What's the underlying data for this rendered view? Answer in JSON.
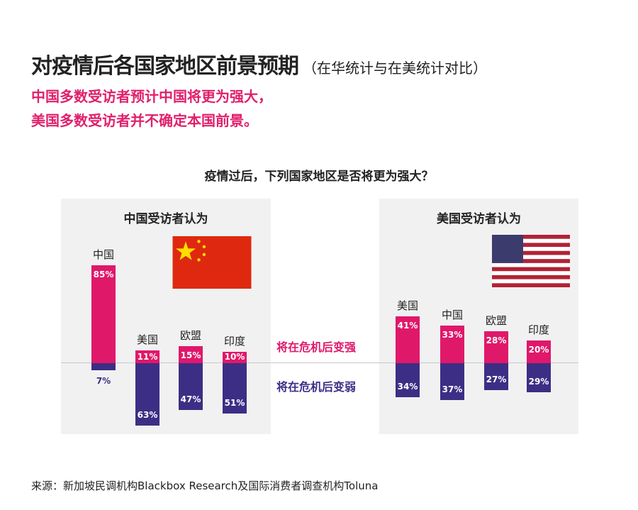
{
  "header": {
    "title": "对疫情后各国家地区前景预期",
    "title_note": "（在华统计与在美统计对比）",
    "subtitle_lines": [
      "中国多数受访者预计中国将更为强大，",
      "美国多数受访者并不确定本国前景。"
    ]
  },
  "source": "来源：新加坡民调机构Blackbox Research及国际消费者调查机构Toluna",
  "colors": {
    "stronger": "#e0186a",
    "weaker": "#3d2e85",
    "accent_text": "#e0206c"
  },
  "chart_data": [
    {
      "type": "bar",
      "title": "疫情过后，下列国家地区是否将更为强大？",
      "panel_title": "中国受访者认为",
      "flag": "china-flag",
      "categories": [
        "中国",
        "美国",
        "欧盟",
        "印度"
      ],
      "series": [
        {
          "name": "将在危机后变强",
          "values": [
            85,
            11,
            15,
            10
          ]
        },
        {
          "name": "将在危机后变弱",
          "values": [
            7,
            63,
            47,
            51
          ]
        }
      ]
    },
    {
      "type": "bar",
      "panel_title": "美国受访者认为",
      "flag": "us-flag",
      "categories": [
        "美国",
        "中国",
        "欧盟",
        "印度"
      ],
      "series": [
        {
          "name": "将在危机后变强",
          "values": [
            41,
            33,
            28,
            20
          ]
        },
        {
          "name": "将在危机后变弱",
          "values": [
            34,
            37,
            27,
            29
          ]
        }
      ]
    }
  ]
}
